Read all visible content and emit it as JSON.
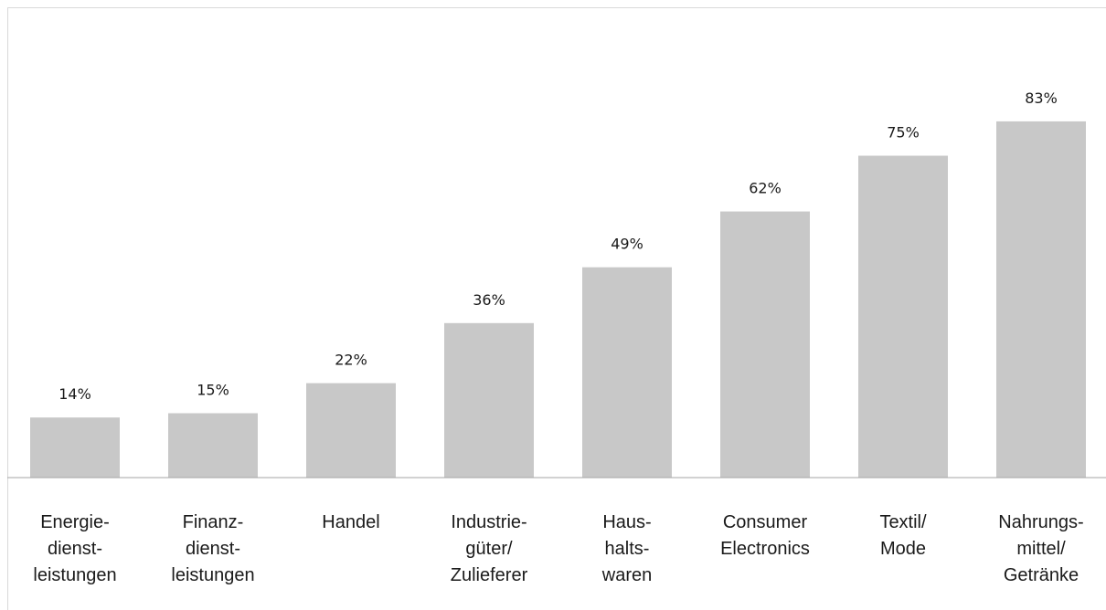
{
  "chart_data": {
    "type": "bar",
    "categories": [
      [
        "Energie-",
        "dienst-",
        "leistungen"
      ],
      [
        "Finanz-",
        "dienst-",
        "leistungen"
      ],
      [
        "Handel"
      ],
      [
        "Industrie-",
        "güter/",
        "Zulieferer"
      ],
      [
        "Haus-",
        "halts-",
        "waren"
      ],
      [
        "Consumer",
        "Electronics"
      ],
      [
        "Textil/",
        "Mode"
      ],
      [
        "Nahrungs-",
        "mittel/",
        "Getränke"
      ]
    ],
    "values": [
      14,
      15,
      22,
      36,
      49,
      62,
      75,
      83
    ],
    "value_labels": [
      "14%",
      "15%",
      "22%",
      "36%",
      "49%",
      "62%",
      "75%",
      "83%"
    ],
    "ylim": [
      0,
      100
    ],
    "grid": false,
    "bar_color": "#c8c8c8"
  }
}
